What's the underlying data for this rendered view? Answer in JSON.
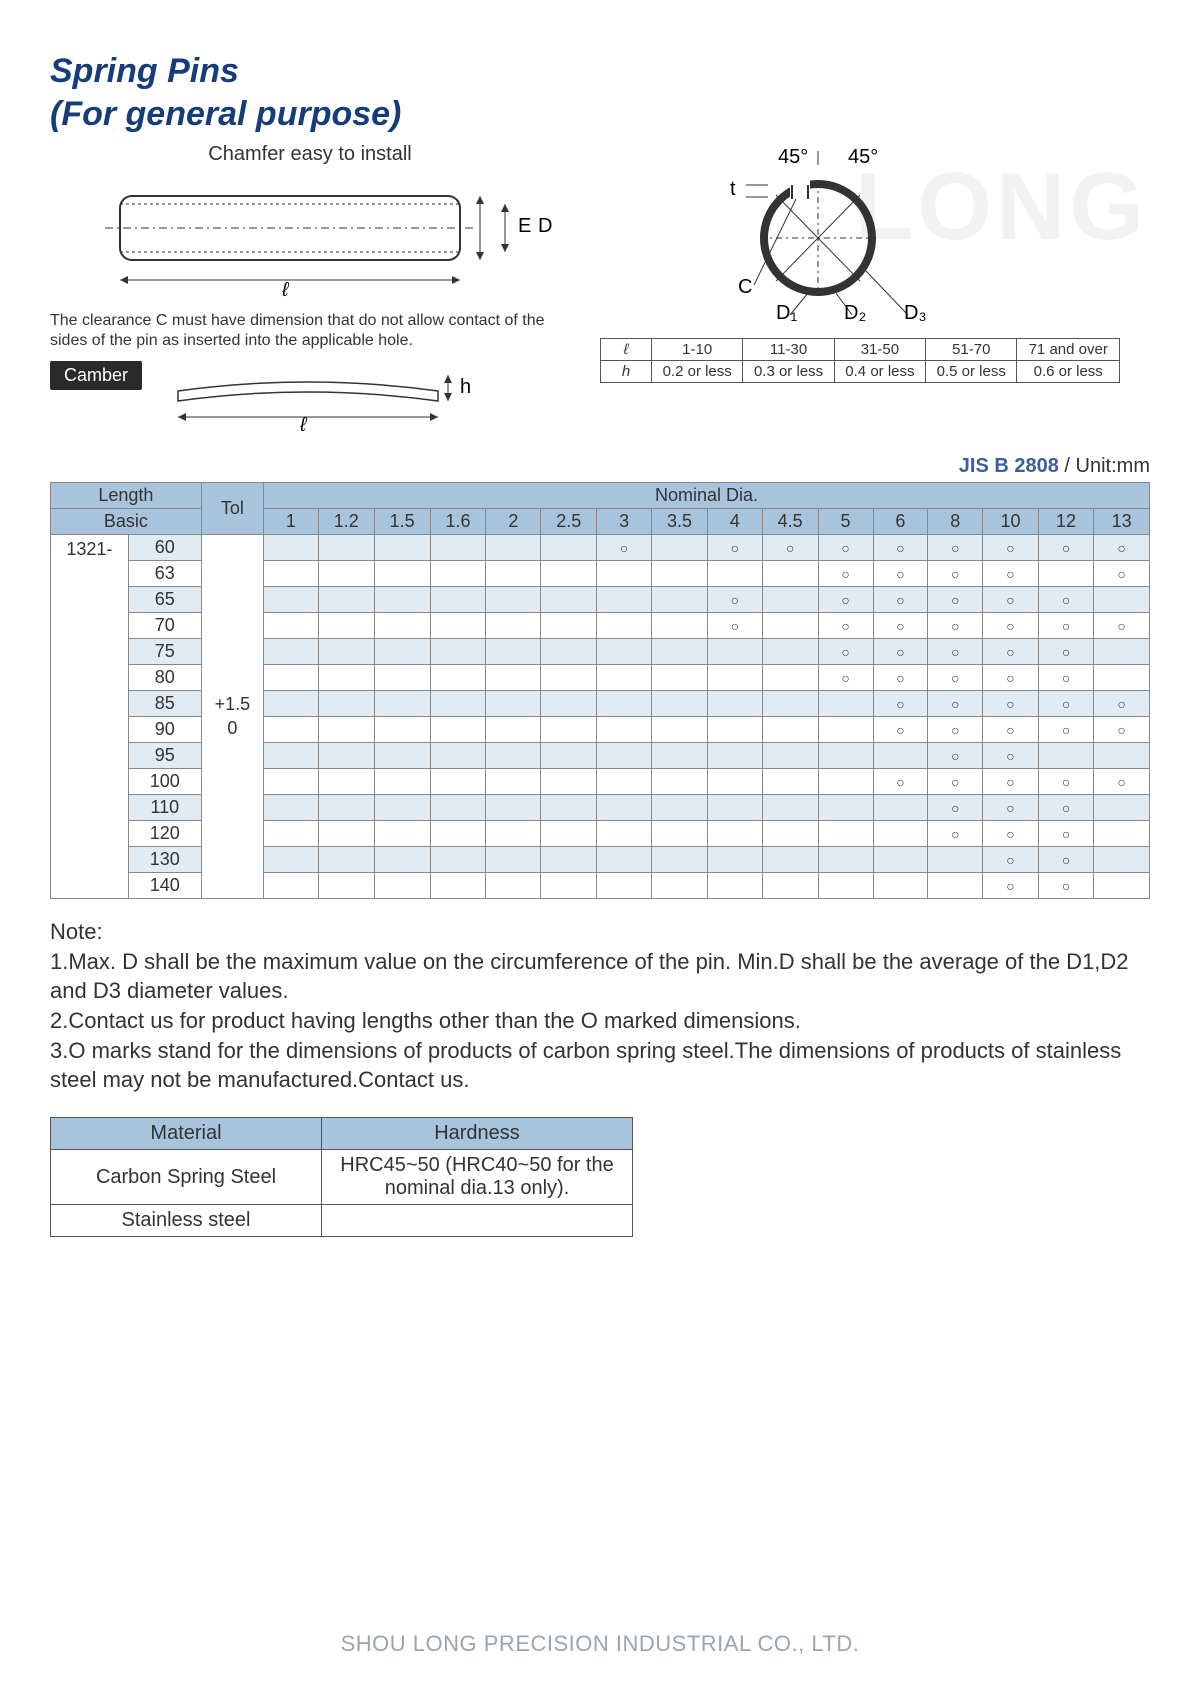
{
  "title_line1": "Spring Pins",
  "title_line2": "(For general purpose)",
  "chamfer_label": "Chamfer easy to install",
  "clearance_note": "The clearance C must have dimension that do not allow contact of the sides of the pin as inserted into the applicable hole.",
  "camber_label": "Camber",
  "angles": {
    "left": "45°",
    "right": "45°"
  },
  "dim_labels": {
    "t": "t",
    "E": "E",
    "D": "D",
    "l": "ℓ",
    "h": "h",
    "C": "C",
    "D1": "D₁",
    "D2": "D₂",
    "D3": "D₃"
  },
  "hl_table": {
    "row_l_label": "ℓ",
    "row_h_label": "h",
    "ranges": [
      "1-10",
      "11-30",
      "31-50",
      "51-70",
      "71 and over"
    ],
    "hvals": [
      "0.2 or less",
      "0.3 or less",
      "0.4 or less",
      "0.5 or less",
      "0.6 or less"
    ]
  },
  "std_code": "JIS B 2808",
  "std_unit": " / Unit:mm",
  "main_table": {
    "length_header": "Length",
    "basic_header": "Basic",
    "tol_header": "Tol",
    "nominal_header": "Nominal Dia.",
    "prefix": "1321-",
    "tol_value": "+1.5\n0",
    "dia_cols": [
      "1",
      "1.2",
      "1.5",
      "1.6",
      "2",
      "2.5",
      "3",
      "3.5",
      "4",
      "4.5",
      "5",
      "6",
      "8",
      "10",
      "12",
      "13"
    ],
    "rows": [
      {
        "basic": "60",
        "marks": [
          "",
          "",
          "",
          "",
          "",
          "",
          "○",
          "",
          "○",
          "○",
          "○",
          "○",
          "○",
          "○",
          "○",
          "○"
        ]
      },
      {
        "basic": "63",
        "marks": [
          "",
          "",
          "",
          "",
          "",
          "",
          "",
          "",
          "",
          "",
          "○",
          "○",
          "○",
          "○",
          "",
          "○"
        ]
      },
      {
        "basic": "65",
        "marks": [
          "",
          "",
          "",
          "",
          "",
          "",
          "",
          "",
          "○",
          "",
          "○",
          "○",
          "○",
          "○",
          "○",
          ""
        ]
      },
      {
        "basic": "70",
        "marks": [
          "",
          "",
          "",
          "",
          "",
          "",
          "",
          "",
          "○",
          "",
          "○",
          "○",
          "○",
          "○",
          "○",
          "○"
        ]
      },
      {
        "basic": "75",
        "marks": [
          "",
          "",
          "",
          "",
          "",
          "",
          "",
          "",
          "",
          "",
          "○",
          "○",
          "○",
          "○",
          "○",
          ""
        ]
      },
      {
        "basic": "80",
        "marks": [
          "",
          "",
          "",
          "",
          "",
          "",
          "",
          "",
          "",
          "",
          "○",
          "○",
          "○",
          "○",
          "○",
          ""
        ]
      },
      {
        "basic": "85",
        "marks": [
          "",
          "",
          "",
          "",
          "",
          "",
          "",
          "",
          "",
          "",
          "",
          "○",
          "○",
          "○",
          "○",
          "○"
        ]
      },
      {
        "basic": "90",
        "marks": [
          "",
          "",
          "",
          "",
          "",
          "",
          "",
          "",
          "",
          "",
          "",
          "○",
          "○",
          "○",
          "○",
          "○"
        ]
      },
      {
        "basic": "95",
        "marks": [
          "",
          "",
          "",
          "",
          "",
          "",
          "",
          "",
          "",
          "",
          "",
          "",
          "○",
          "○",
          "",
          ""
        ]
      },
      {
        "basic": "100",
        "marks": [
          "",
          "",
          "",
          "",
          "",
          "",
          "",
          "",
          "",
          "",
          "",
          "○",
          "○",
          "○",
          "○",
          "○"
        ]
      },
      {
        "basic": "110",
        "marks": [
          "",
          "",
          "",
          "",
          "",
          "",
          "",
          "",
          "",
          "",
          "",
          "",
          "○",
          "○",
          "○",
          ""
        ]
      },
      {
        "basic": "120",
        "marks": [
          "",
          "",
          "",
          "",
          "",
          "",
          "",
          "",
          "",
          "",
          "",
          "",
          "○",
          "○",
          "○",
          ""
        ]
      },
      {
        "basic": "130",
        "marks": [
          "",
          "",
          "",
          "",
          "",
          "",
          "",
          "",
          "",
          "",
          "",
          "",
          "",
          "○",
          "○",
          ""
        ]
      },
      {
        "basic": "140",
        "marks": [
          "",
          "",
          "",
          "",
          "",
          "",
          "",
          "",
          "",
          "",
          "",
          "",
          "",
          "○",
          "○",
          ""
        ]
      }
    ]
  },
  "notes_heading": "Note:",
  "notes": [
    "1.Max. D shall be the maximum value on the circumference of the pin. Min.D shall be the average of the D1,D2 and D3 diameter values.",
    "2.Contact us for product having lengths other than the O marked dimensions.",
    "3.O marks stand for the dimensions of products of carbon spring steel.The dimensions of products of stainless steel may not be manufactured.Contact us."
  ],
  "material_table": {
    "headers": [
      "Material",
      "Hardness"
    ],
    "rows": [
      [
        "Carbon Spring Steel",
        "HRC45~50 (HRC40~50 for the nominal dia.13 only)."
      ],
      [
        "Stainless steel",
        ""
      ]
    ]
  },
  "footer": "SHOU LONG PRECISION INDUSTRIAL CO., LTD.",
  "watermark": "LONG",
  "colors": {
    "title": "#163d7a",
    "header_bg": "#a8c4dc",
    "cell_bg": "#e1ebf3",
    "border": "#888888",
    "footer": "#9aa5ae"
  }
}
